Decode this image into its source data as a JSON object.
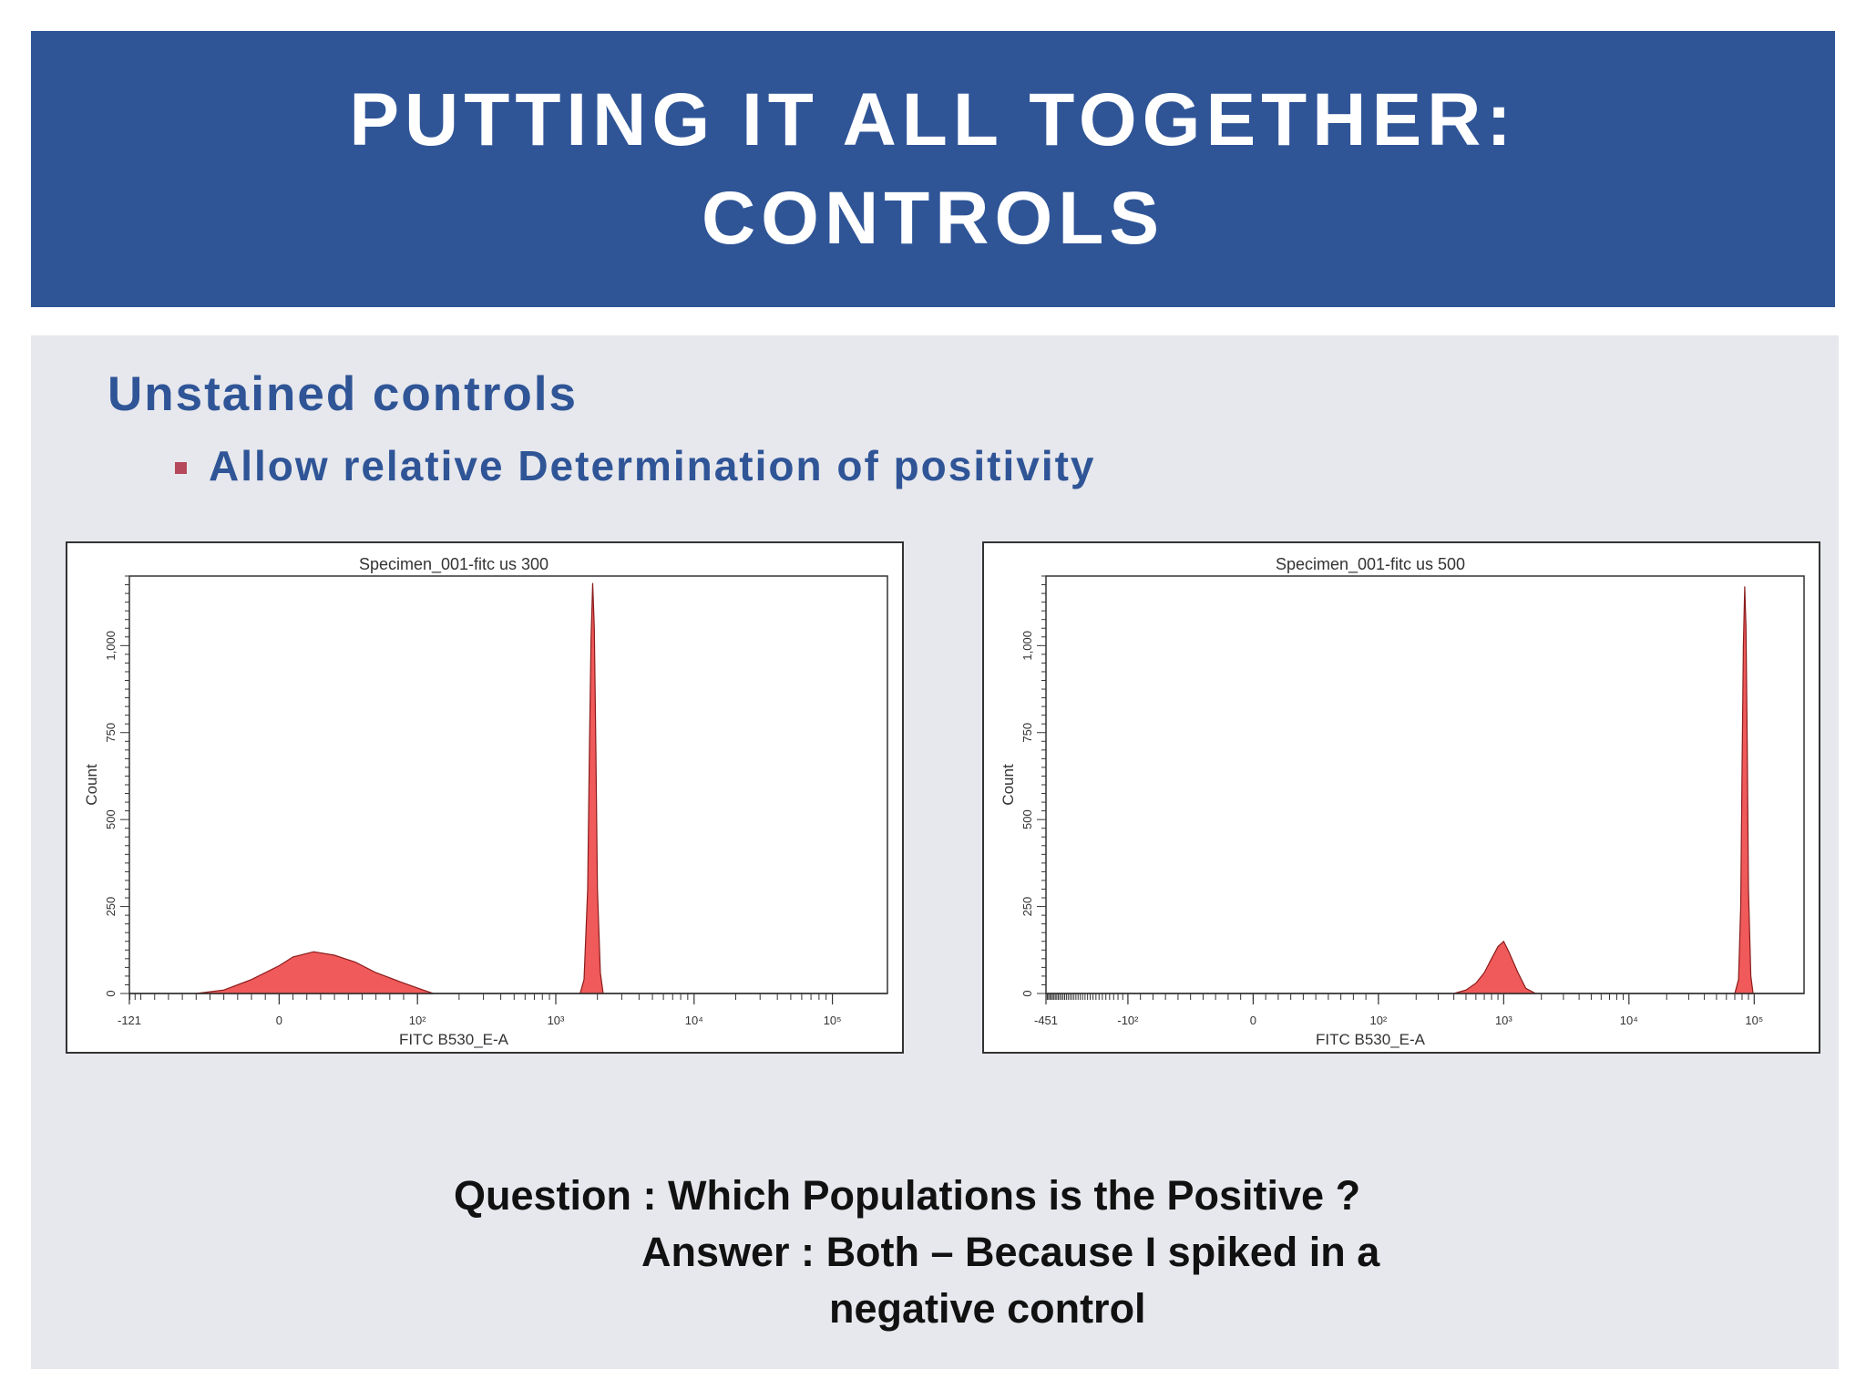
{
  "slide": {
    "title_line1": "PUTTING IT ALL TOGETHER:",
    "title_line2": "CONTROLS",
    "subtitle": "Unstained controls",
    "bullet": "Allow relative Determination of positivity",
    "question_line1": "Question : Which Populations is the Positive ?",
    "answer_label": "Answer :",
    "answer_line1": "Both – Because I spiked in a",
    "answer_line2": "negative control"
  },
  "colors": {
    "header_bg": "#2f5597",
    "content_bg": "#e7e8ed",
    "accent_text": "#2f5597",
    "bullet": "#b5485a",
    "histogram_fill": "#f05a5a"
  },
  "chart_data": [
    {
      "type": "area",
      "title": "Specimen_001-fitc us 300",
      "xlabel": "FITC B530_E-A",
      "ylabel": "Count",
      "x_scale": "biexponential",
      "x_tick_labels": [
        "-121",
        "0",
        "10²",
        "10³",
        "10⁴",
        "10⁵"
      ],
      "y_tick_labels": [
        "0",
        "250",
        "500",
        "750",
        "1,000"
      ],
      "ylim": [
        0,
        1200
      ],
      "grid": false,
      "series": [
        {
          "x": [
            -60,
            -40,
            -20,
            0,
            10,
            25,
            40,
            55,
            70,
            90,
            110,
            130
          ],
          "values": [
            0,
            10,
            40,
            80,
            105,
            120,
            110,
            90,
            60,
            30,
            10,
            0
          ]
        },
        {
          "x": [
            1500,
            1600,
            1700,
            1750,
            1800,
            1850,
            1900,
            1950,
            2000,
            2100,
            2200
          ],
          "values": [
            0,
            40,
            300,
            700,
            1020,
            1180,
            1050,
            700,
            300,
            60,
            0
          ]
        }
      ]
    },
    {
      "type": "area",
      "title": "Specimen_001-fitc us 500",
      "xlabel": "FITC B530_E-A",
      "ylabel": "Count",
      "x_scale": "biexponential",
      "x_tick_labels": [
        "-451",
        "-10²",
        "0",
        "10²",
        "10³",
        "10⁴",
        "10⁵"
      ],
      "y_tick_labels": [
        "0",
        "250",
        "500",
        "750",
        "1,000"
      ],
      "ylim": [
        0,
        1200
      ],
      "grid": false,
      "series": [
        {
          "x": [
            400,
            500,
            600,
            700,
            800,
            900,
            1000,
            1100,
            1300,
            1500,
            1800
          ],
          "values": [
            0,
            10,
            30,
            60,
            100,
            135,
            150,
            120,
            60,
            15,
            0
          ]
        },
        {
          "x": [
            70000,
            75000,
            78000,
            80000,
            82000,
            84000,
            86000,
            88000,
            90000,
            94000,
            98000
          ],
          "values": [
            0,
            40,
            250,
            650,
            1000,
            1170,
            1050,
            700,
            300,
            50,
            0
          ]
        }
      ]
    }
  ]
}
